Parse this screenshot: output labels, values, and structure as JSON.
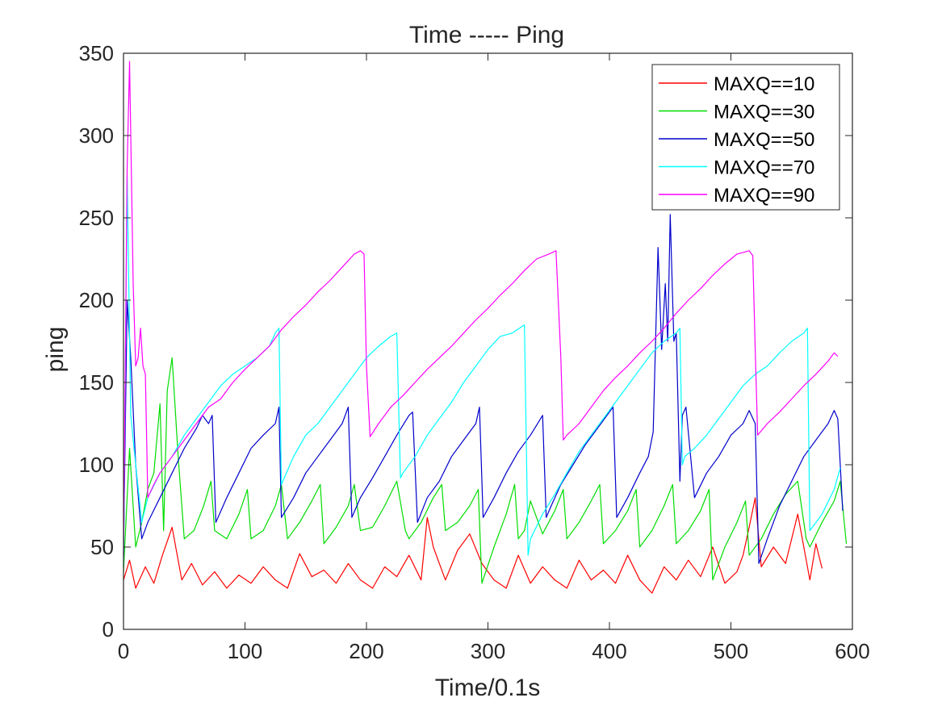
{
  "chart_data": {
    "type": "line",
    "title": "Time  -----  Ping",
    "xlabel": "Time/0.1s",
    "ylabel": "ping",
    "xlim": [
      0,
      600
    ],
    "ylim": [
      0,
      350
    ],
    "xticks": [
      "0",
      "100",
      "200",
      "300",
      "400",
      "500",
      "600"
    ],
    "yticks": [
      "0",
      "50",
      "100",
      "150",
      "200",
      "250",
      "300",
      "350"
    ],
    "grid": false,
    "legend_position": "top-right",
    "series": [
      {
        "name": "MAXQ==10",
        "color": "#ff0000",
        "x": [
          0,
          5,
          10,
          18,
          25,
          32,
          40,
          48,
          56,
          65,
          75,
          85,
          95,
          105,
          115,
          125,
          135,
          145,
          155,
          165,
          175,
          185,
          195,
          205,
          215,
          225,
          235,
          245,
          250,
          255,
          265,
          275,
          285,
          295,
          305,
          315,
          325,
          335,
          345,
          355,
          365,
          375,
          385,
          395,
          405,
          415,
          425,
          435,
          445,
          455,
          465,
          475,
          485,
          495,
          505,
          510,
          515,
          520,
          525,
          535,
          545,
          555,
          565,
          570,
          575
        ],
        "y": [
          30,
          42,
          25,
          38,
          28,
          45,
          62,
          30,
          40,
          27,
          35,
          25,
          33,
          28,
          38,
          30,
          25,
          46,
          32,
          36,
          28,
          40,
          30,
          25,
          38,
          32,
          45,
          30,
          68,
          50,
          30,
          48,
          58,
          40,
          30,
          25,
          45,
          28,
          38,
          30,
          25,
          42,
          30,
          36,
          28,
          45,
          30,
          22,
          38,
          30,
          42,
          32,
          50,
          28,
          35,
          45,
          62,
          80,
          38,
          50,
          40,
          70,
          30,
          52,
          37
        ]
      },
      {
        "name": "MAXQ==30",
        "color": "#00dd00",
        "x": [
          0,
          5,
          10,
          15,
          20,
          25,
          30,
          33,
          36,
          40,
          45,
          50,
          58,
          66,
          72,
          75,
          85,
          95,
          102,
          105,
          115,
          125,
          130,
          135,
          145,
          155,
          162,
          165,
          175,
          185,
          190,
          195,
          205,
          215,
          225,
          232,
          235,
          245,
          255,
          262,
          265,
          275,
          285,
          292,
          295,
          305,
          315,
          322,
          325,
          330,
          335,
          345,
          355,
          362,
          365,
          375,
          385,
          392,
          395,
          405,
          415,
          422,
          425,
          435,
          445,
          452,
          455,
          465,
          475,
          482,
          485,
          495,
          505,
          512,
          515,
          525,
          535,
          545,
          555,
          562,
          565,
          575,
          585,
          590,
          595
        ],
        "y": [
          35,
          110,
          50,
          65,
          85,
          95,
          137,
          60,
          145,
          165,
          105,
          55,
          60,
          75,
          90,
          60,
          55,
          70,
          85,
          55,
          60,
          75,
          88,
          55,
          65,
          78,
          88,
          52,
          62,
          75,
          88,
          60,
          62,
          75,
          90,
          60,
          55,
          65,
          80,
          88,
          60,
          65,
          75,
          85,
          28,
          50,
          70,
          88,
          55,
          60,
          78,
          58,
          72,
          85,
          55,
          65,
          78,
          88,
          52,
          60,
          72,
          85,
          50,
          60,
          75,
          88,
          52,
          60,
          72,
          85,
          30,
          50,
          65,
          78,
          45,
          55,
          70,
          82,
          90,
          55,
          50,
          65,
          78,
          90,
          52
        ]
      },
      {
        "name": "MAXQ==50",
        "color": "#0000cc",
        "x": [
          0,
          3,
          6,
          10,
          15,
          20,
          30,
          40,
          50,
          60,
          65,
          70,
          73,
          76,
          85,
          95,
          105,
          115,
          125,
          128,
          130,
          140,
          150,
          160,
          170,
          180,
          185,
          188,
          195,
          205,
          215,
          225,
          235,
          238,
          242,
          250,
          260,
          270,
          280,
          290,
          293,
          296,
          305,
          315,
          325,
          335,
          345,
          348,
          352,
          360,
          370,
          380,
          390,
          400,
          403,
          406,
          415,
          425,
          432,
          436,
          440,
          443,
          446,
          448,
          450,
          453,
          455,
          458,
          460,
          463,
          470,
          480,
          490,
          500,
          510,
          515,
          520,
          523,
          530,
          540,
          550,
          560,
          570,
          580,
          585,
          588,
          592
        ],
        "y": [
          45,
          200,
          165,
          100,
          55,
          65,
          80,
          95,
          110,
          122,
          130,
          125,
          130,
          65,
          80,
          95,
          110,
          118,
          125,
          135,
          68,
          80,
          95,
          105,
          115,
          125,
          135,
          68,
          80,
          92,
          105,
          118,
          130,
          132,
          65,
          80,
          90,
          105,
          115,
          125,
          135,
          68,
          80,
          95,
          108,
          118,
          130,
          68,
          75,
          88,
          100,
          112,
          122,
          132,
          135,
          68,
          80,
          95,
          105,
          120,
          232,
          170,
          210,
          175,
          252,
          175,
          180,
          90,
          130,
          135,
          80,
          95,
          105,
          118,
          125,
          133,
          125,
          40,
          55,
          75,
          90,
          105,
          115,
          125,
          133,
          128,
          72
        ]
      },
      {
        "name": "MAXQ==70",
        "color": "#00ffff",
        "x": [
          0,
          3,
          6,
          10,
          15,
          20,
          30,
          40,
          50,
          60,
          70,
          80,
          90,
          100,
          110,
          120,
          125,
          128,
          130,
          140,
          150,
          160,
          170,
          180,
          190,
          200,
          210,
          220,
          225,
          228,
          230,
          240,
          250,
          260,
          270,
          280,
          290,
          300,
          310,
          320,
          330,
          333,
          335,
          345,
          355,
          365,
          375,
          385,
          395,
          405,
          415,
          425,
          435,
          445,
          455,
          458,
          460,
          462,
          470,
          480,
          490,
          500,
          510,
          520,
          530,
          540,
          550,
          560,
          563,
          565,
          575,
          585,
          590
        ],
        "y": [
          38,
          275,
          130,
          100,
          65,
          80,
          95,
          105,
          118,
          128,
          138,
          148,
          155,
          160,
          165,
          172,
          180,
          183,
          88,
          105,
          118,
          125,
          135,
          145,
          155,
          165,
          172,
          178,
          180,
          92,
          95,
          105,
          118,
          128,
          138,
          150,
          160,
          170,
          178,
          180,
          185,
          45,
          55,
          70,
          82,
          95,
          108,
          118,
          128,
          138,
          148,
          158,
          168,
          175,
          180,
          183,
          100,
          105,
          110,
          118,
          128,
          138,
          148,
          155,
          160,
          168,
          175,
          180,
          183,
          60,
          70,
          85,
          98
        ]
      },
      {
        "name": "MAXQ==90",
        "color": "#ff00ff",
        "x": [
          0,
          3,
          5,
          8,
          10,
          12,
          14,
          16,
          18,
          20,
          25,
          30,
          40,
          50,
          60,
          70,
          80,
          90,
          100,
          110,
          120,
          130,
          140,
          150,
          160,
          170,
          180,
          190,
          195,
          198,
          200,
          203,
          210,
          220,
          230,
          240,
          250,
          260,
          270,
          280,
          290,
          300,
          310,
          320,
          330,
          340,
          350,
          356,
          360,
          362,
          365,
          375,
          385,
          395,
          405,
          415,
          425,
          435,
          445,
          455,
          465,
          475,
          485,
          495,
          505,
          515,
          518,
          520,
          522,
          530,
          540,
          550,
          560,
          570,
          580,
          585,
          588
        ],
        "y": [
          45,
          280,
          345,
          210,
          160,
          165,
          183,
          160,
          155,
          80,
          88,
          95,
          105,
          115,
          125,
          135,
          140,
          150,
          158,
          165,
          172,
          182,
          190,
          197,
          205,
          212,
          220,
          228,
          230,
          228,
          160,
          117,
          125,
          135,
          142,
          150,
          158,
          165,
          172,
          180,
          188,
          195,
          203,
          210,
          218,
          225,
          228,
          230,
          165,
          115,
          118,
          125,
          135,
          145,
          153,
          160,
          168,
          175,
          183,
          192,
          200,
          207,
          215,
          222,
          228,
          230,
          227,
          170,
          118,
          125,
          132,
          140,
          148,
          155,
          163,
          168,
          166
        ]
      }
    ]
  }
}
